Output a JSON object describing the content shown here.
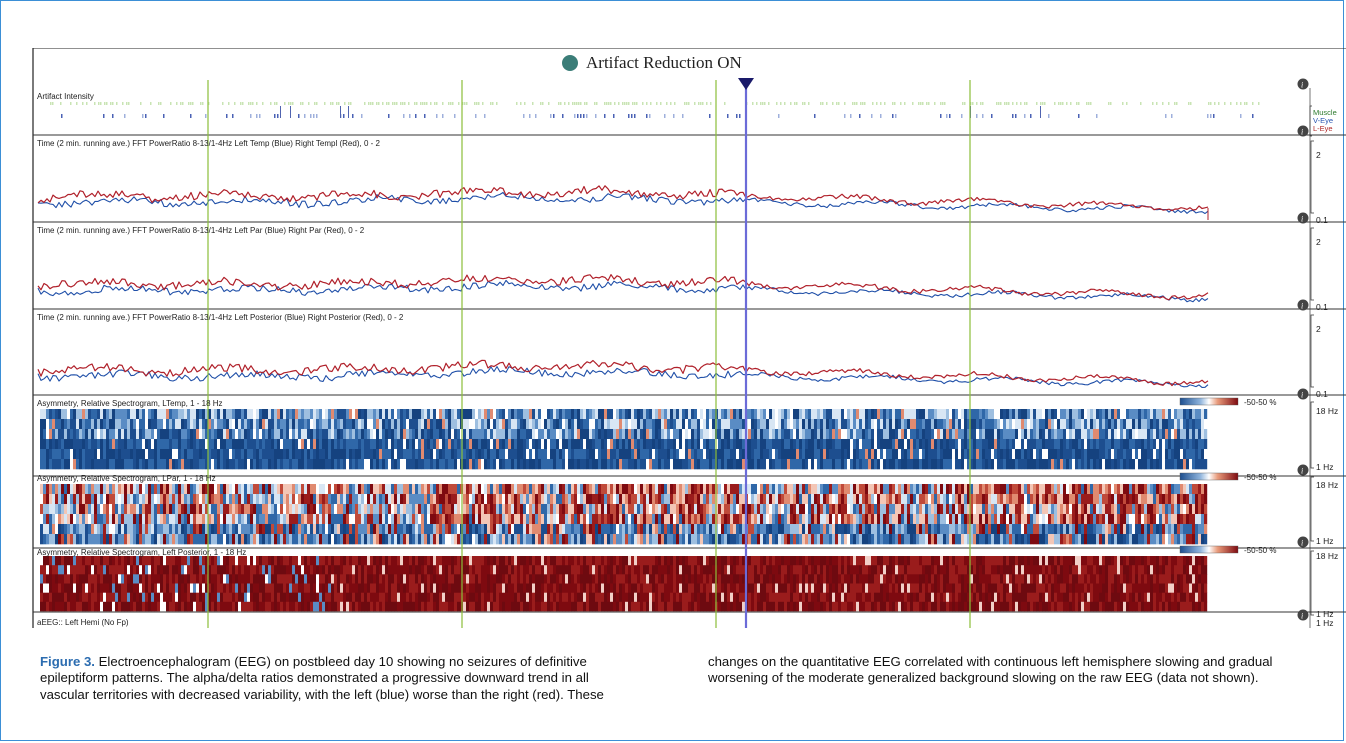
{
  "header": {
    "title": "Artifact Reduction ON"
  },
  "panels": [
    {
      "title": "Artifact Intensity",
      "legend": [
        "Muscle",
        "V-Eye",
        "L-Eye"
      ]
    },
    {
      "title": "Time (2 min. running ave.) FFT PowerRatio 8-13/1-4Hz Left Temp (Blue) Right Templ (Red),  0 - 2",
      "ymax": "2",
      "ymin": "0.1"
    },
    {
      "title": "Time (2 min. running ave.) FFT PowerRatio 8-13/1-4Hz Left Par (Blue) Right Par (Red),  0 - 2",
      "ymax": "2",
      "ymin": "0.1"
    },
    {
      "title": "Time (2 min. running ave.) FFT PowerRatio 8-13/1-4Hz Left Posterior (Blue) Right Posterior (Red),  0 - 2",
      "ymax": "2",
      "ymin": "0.1"
    },
    {
      "title": "Asymmetry, Relative Spectrogram, LTemp, 1 - 18 Hz",
      "scale": "-50-50 %",
      "ymax": "18 Hz",
      "ymin": "1 Hz"
    },
    {
      "title": "Asymmetry, Relative Spectrogram, LPar, 1 - 18 Hz",
      "scale": "-50-50 %",
      "ymax": "18 Hz",
      "ymin": "1 Hz"
    },
    {
      "title": "Asymmetry, Relative Spectrogram, Left Posterior, 1 - 18 Hz",
      "scale": "-50-50 %",
      "ymax": "18 Hz",
      "ymin": "1 Hz"
    },
    {
      "title": "aEEG:: Left Hemi (No Fp)",
      "ymin": "1 Hz"
    }
  ],
  "colors": {
    "left_blue": "#1f4fa8",
    "right_red": "#b0202a",
    "marker_green": "#8bbf3a",
    "cursor_blue": "#6b6bd8",
    "spectro_dark_red": "#7e0a10",
    "spectro_dark_blue": "#1d4e8f"
  },
  "caption": {
    "figure_label": "Figure 3.",
    "text_left": "Electroencephalogram (EEG) on postbleed day 10 showing no seizures of definitive epileptiform patterns. The alpha/delta ratios demonstrated a progressive downward trend in all vascular territories with decreased variability, with the left (blue) worse than the right (red). These",
    "text_right": "changes on the quantitative EEG correlated with continuous left hemisphere slowing and gradual worsening of the moderate generalized background slowing on the raw EEG (data not shown)."
  }
}
